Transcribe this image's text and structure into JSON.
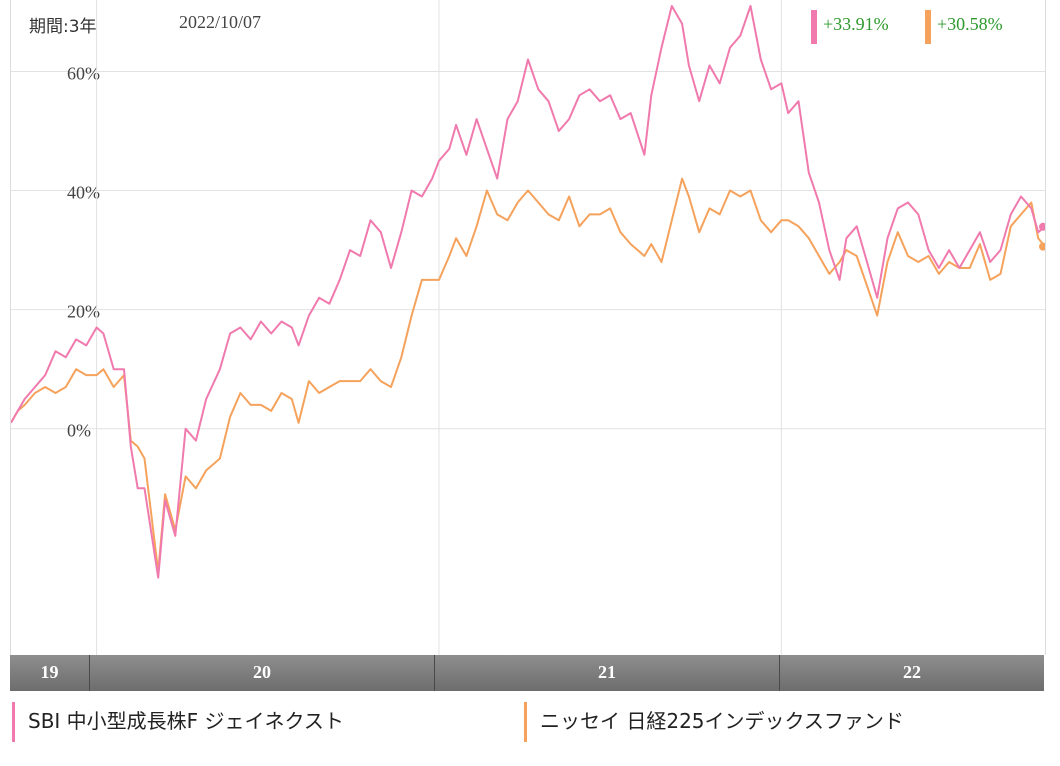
{
  "header": {
    "period_label": "期間:3年",
    "date": "2022/10/07"
  },
  "colors": {
    "series1": "#f07aae",
    "series2": "#f5a25c",
    "gain_text": "#2e9a2e",
    "grid": "#e2e2e2"
  },
  "chart_data": {
    "type": "line",
    "title": "",
    "xlabel": "",
    "ylabel": "",
    "x_range": [
      2019.75,
      2022.77
    ],
    "ylim": [
      -38,
      72
    ],
    "y_ticks": [
      0,
      20,
      40,
      60
    ],
    "y_tick_labels": [
      "0%",
      "20%",
      "40%",
      "60%"
    ],
    "x_ticks": [
      {
        "label": "19",
        "start": 2019.75,
        "end": 2020.0
      },
      {
        "label": "20",
        "start": 2020.0,
        "end": 2021.0
      },
      {
        "label": "21",
        "start": 2021.0,
        "end": 2022.0
      },
      {
        "label": "22",
        "start": 2022.0,
        "end": 2022.77
      }
    ],
    "grid": true,
    "legend_position": "bottom",
    "series": [
      {
        "name": "SBI 中小型成長株F ジェイネクスト",
        "final_label": "+33.91%",
        "color": "#f07aae",
        "points": [
          [
            2019.75,
            1
          ],
          [
            2019.77,
            3
          ],
          [
            2019.79,
            5
          ],
          [
            2019.82,
            7
          ],
          [
            2019.85,
            9
          ],
          [
            2019.88,
            13
          ],
          [
            2019.91,
            12
          ],
          [
            2019.94,
            15
          ],
          [
            2019.97,
            14
          ],
          [
            2020.0,
            17
          ],
          [
            2020.02,
            16
          ],
          [
            2020.05,
            10
          ],
          [
            2020.08,
            10
          ],
          [
            2020.1,
            -3
          ],
          [
            2020.12,
            -10
          ],
          [
            2020.14,
            -10
          ],
          [
            2020.18,
            -25
          ],
          [
            2020.2,
            -12
          ],
          [
            2020.23,
            -18
          ],
          [
            2020.26,
            0
          ],
          [
            2020.29,
            -2
          ],
          [
            2020.32,
            5
          ],
          [
            2020.36,
            10
          ],
          [
            2020.39,
            16
          ],
          [
            2020.42,
            17
          ],
          [
            2020.45,
            15
          ],
          [
            2020.48,
            18
          ],
          [
            2020.51,
            16
          ],
          [
            2020.54,
            18
          ],
          [
            2020.57,
            17
          ],
          [
            2020.59,
            14
          ],
          [
            2020.62,
            19
          ],
          [
            2020.65,
            22
          ],
          [
            2020.68,
            21
          ],
          [
            2020.71,
            25
          ],
          [
            2020.74,
            30
          ],
          [
            2020.77,
            29
          ],
          [
            2020.8,
            35
          ],
          [
            2020.83,
            33
          ],
          [
            2020.86,
            27
          ],
          [
            2020.89,
            33
          ],
          [
            2020.92,
            40
          ],
          [
            2020.95,
            39
          ],
          [
            2020.98,
            42
          ],
          [
            2021.0,
            45
          ],
          [
            2021.03,
            47
          ],
          [
            2021.05,
            51
          ],
          [
            2021.08,
            46
          ],
          [
            2021.11,
            52
          ],
          [
            2021.14,
            47
          ],
          [
            2021.17,
            42
          ],
          [
            2021.2,
            52
          ],
          [
            2021.23,
            55
          ],
          [
            2021.26,
            62
          ],
          [
            2021.29,
            57
          ],
          [
            2021.32,
            55
          ],
          [
            2021.35,
            50
          ],
          [
            2021.38,
            52
          ],
          [
            2021.41,
            56
          ],
          [
            2021.44,
            57
          ],
          [
            2021.47,
            55
          ],
          [
            2021.5,
            56
          ],
          [
            2021.53,
            52
          ],
          [
            2021.56,
            53
          ],
          [
            2021.6,
            46
          ],
          [
            2021.62,
            56
          ],
          [
            2021.65,
            64
          ],
          [
            2021.68,
            71
          ],
          [
            2021.71,
            68
          ],
          [
            2021.73,
            61
          ],
          [
            2021.76,
            55
          ],
          [
            2021.79,
            61
          ],
          [
            2021.82,
            58
          ],
          [
            2021.85,
            64
          ],
          [
            2021.88,
            66
          ],
          [
            2021.91,
            71
          ],
          [
            2021.94,
            62
          ],
          [
            2021.97,
            57
          ],
          [
            2022.0,
            58
          ],
          [
            2022.02,
            53
          ],
          [
            2022.05,
            55
          ],
          [
            2022.08,
            43
          ],
          [
            2022.11,
            38
          ],
          [
            2022.14,
            30
          ],
          [
            2022.17,
            25
          ],
          [
            2022.19,
            32
          ],
          [
            2022.22,
            34
          ],
          [
            2022.25,
            28
          ],
          [
            2022.28,
            22
          ],
          [
            2022.31,
            32
          ],
          [
            2022.34,
            37
          ],
          [
            2022.37,
            38
          ],
          [
            2022.4,
            36
          ],
          [
            2022.43,
            30
          ],
          [
            2022.46,
            27
          ],
          [
            2022.49,
            30
          ],
          [
            2022.52,
            27
          ],
          [
            2022.55,
            30
          ],
          [
            2022.58,
            33
          ],
          [
            2022.61,
            28
          ],
          [
            2022.64,
            30
          ],
          [
            2022.67,
            36
          ],
          [
            2022.7,
            39
          ],
          [
            2022.73,
            37
          ],
          [
            2022.75,
            33
          ],
          [
            2022.77,
            33.91
          ]
        ]
      },
      {
        "name": "ニッセイ 日経225インデックスファンド",
        "final_label": "+30.58%",
        "color": "#f5a25c",
        "points": [
          [
            2019.75,
            1
          ],
          [
            2019.77,
            3
          ],
          [
            2019.79,
            4
          ],
          [
            2019.82,
            6
          ],
          [
            2019.85,
            7
          ],
          [
            2019.88,
            6
          ],
          [
            2019.91,
            7
          ],
          [
            2019.94,
            10
          ],
          [
            2019.97,
            9
          ],
          [
            2020.0,
            9
          ],
          [
            2020.02,
            10
          ],
          [
            2020.05,
            7
          ],
          [
            2020.08,
            9
          ],
          [
            2020.1,
            -2
          ],
          [
            2020.12,
            -3
          ],
          [
            2020.14,
            -5
          ],
          [
            2020.18,
            -24
          ],
          [
            2020.2,
            -11
          ],
          [
            2020.23,
            -17
          ],
          [
            2020.26,
            -8
          ],
          [
            2020.29,
            -10
          ],
          [
            2020.32,
            -7
          ],
          [
            2020.36,
            -5
          ],
          [
            2020.39,
            2
          ],
          [
            2020.42,
            6
          ],
          [
            2020.45,
            4
          ],
          [
            2020.48,
            4
          ],
          [
            2020.51,
            3
          ],
          [
            2020.54,
            6
          ],
          [
            2020.57,
            5
          ],
          [
            2020.59,
            1
          ],
          [
            2020.62,
            8
          ],
          [
            2020.65,
            6
          ],
          [
            2020.68,
            7
          ],
          [
            2020.71,
            8
          ],
          [
            2020.74,
            8
          ],
          [
            2020.77,
            8
          ],
          [
            2020.8,
            10
          ],
          [
            2020.83,
            8
          ],
          [
            2020.86,
            7
          ],
          [
            2020.89,
            12
          ],
          [
            2020.92,
            19
          ],
          [
            2020.95,
            25
          ],
          [
            2020.98,
            25
          ],
          [
            2021.0,
            25
          ],
          [
            2021.03,
            29
          ],
          [
            2021.05,
            32
          ],
          [
            2021.08,
            29
          ],
          [
            2021.11,
            34
          ],
          [
            2021.14,
            40
          ],
          [
            2021.17,
            36
          ],
          [
            2021.2,
            35
          ],
          [
            2021.23,
            38
          ],
          [
            2021.26,
            40
          ],
          [
            2021.29,
            38
          ],
          [
            2021.32,
            36
          ],
          [
            2021.35,
            35
          ],
          [
            2021.38,
            39
          ],
          [
            2021.41,
            34
          ],
          [
            2021.44,
            36
          ],
          [
            2021.47,
            36
          ],
          [
            2021.5,
            37
          ],
          [
            2021.53,
            33
          ],
          [
            2021.56,
            31
          ],
          [
            2021.6,
            29
          ],
          [
            2021.62,
            31
          ],
          [
            2021.65,
            28
          ],
          [
            2021.68,
            35
          ],
          [
            2021.71,
            42
          ],
          [
            2021.73,
            39
          ],
          [
            2021.76,
            33
          ],
          [
            2021.79,
            37
          ],
          [
            2021.82,
            36
          ],
          [
            2021.85,
            40
          ],
          [
            2021.88,
            39
          ],
          [
            2021.91,
            40
          ],
          [
            2021.94,
            35
          ],
          [
            2021.97,
            33
          ],
          [
            2022.0,
            35
          ],
          [
            2022.02,
            35
          ],
          [
            2022.05,
            34
          ],
          [
            2022.08,
            32
          ],
          [
            2022.11,
            29
          ],
          [
            2022.14,
            26
          ],
          [
            2022.17,
            28
          ],
          [
            2022.19,
            30
          ],
          [
            2022.22,
            29
          ],
          [
            2022.25,
            24
          ],
          [
            2022.28,
            19
          ],
          [
            2022.31,
            28
          ],
          [
            2022.34,
            33
          ],
          [
            2022.37,
            29
          ],
          [
            2022.4,
            28
          ],
          [
            2022.43,
            29
          ],
          [
            2022.46,
            26
          ],
          [
            2022.49,
            28
          ],
          [
            2022.52,
            27
          ],
          [
            2022.55,
            27
          ],
          [
            2022.58,
            31
          ],
          [
            2022.61,
            25
          ],
          [
            2022.64,
            26
          ],
          [
            2022.67,
            34
          ],
          [
            2022.7,
            36
          ],
          [
            2022.73,
            38
          ],
          [
            2022.75,
            32
          ],
          [
            2022.77,
            30.58
          ]
        ]
      }
    ]
  }
}
